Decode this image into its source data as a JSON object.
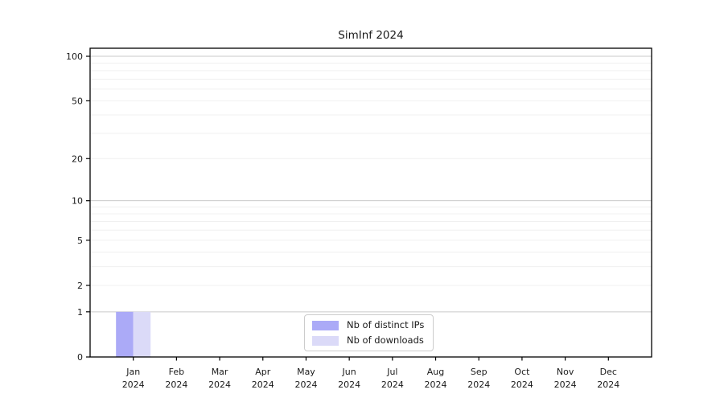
{
  "chart_data": {
    "type": "bar",
    "title": "SimInf 2024",
    "x_axis": {
      "months": [
        "Jan",
        "Feb",
        "Mar",
        "Apr",
        "May",
        "Jun",
        "Jul",
        "Aug",
        "Sep",
        "Oct",
        "Nov",
        "Dec"
      ],
      "year": "2024"
    },
    "y_axis": {
      "scale": "log1p",
      "ticks": [
        0,
        1,
        2,
        5,
        10,
        20,
        50,
        100
      ],
      "minor_grid": [
        2,
        3,
        4,
        5,
        6,
        7,
        8,
        9,
        20,
        30,
        40,
        50,
        60,
        70,
        80,
        90
      ],
      "major_grid": [
        1,
        10,
        100
      ],
      "max": 100
    },
    "series": [
      {
        "name": "Nb of distinct IPs",
        "color": "#abaaf7",
        "values": [
          1,
          0,
          0,
          0,
          0,
          0,
          0,
          0,
          0,
          0,
          0,
          0
        ]
      },
      {
        "name": "Nb of downloads",
        "color": "#dbdaf8",
        "values": [
          1,
          0,
          0,
          0,
          0,
          0,
          0,
          0,
          0,
          0,
          0,
          0
        ]
      }
    ],
    "legend": {
      "position": "lower center"
    },
    "colors": {
      "spine": "#000000",
      "tick_text": "#1a1a1a",
      "major_grid": "#c9c9c9",
      "minor_grid": "#f0f0f0"
    }
  }
}
